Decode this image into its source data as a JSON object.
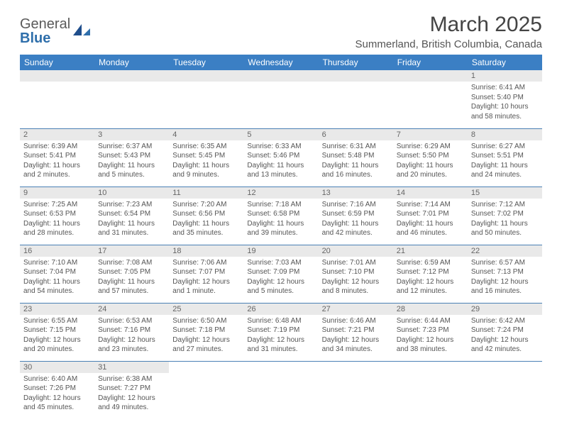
{
  "logo": {
    "general": "General",
    "blue": "Blue"
  },
  "header": {
    "title": "March 2025",
    "subtitle": "Summerland, British Columbia, Canada"
  },
  "style": {
    "header_bg": "#3b7fc4",
    "header_fg": "#ffffff",
    "daynum_bg": "#e9e9e9",
    "daynum_fg": "#666666",
    "border_color": "#4a80b5",
    "body_fg": "#555555",
    "title_fontsize": 30,
    "subtitle_fontsize": 15,
    "weekday_fontsize": 12,
    "daynum_fontsize": 11,
    "cell_fontsize": 10
  },
  "weekdays": [
    "Sunday",
    "Monday",
    "Tuesday",
    "Wednesday",
    "Thursday",
    "Friday",
    "Saturday"
  ],
  "cells": [
    [
      {
        "blank": true
      },
      {
        "blank": true
      },
      {
        "blank": true
      },
      {
        "blank": true
      },
      {
        "blank": true
      },
      {
        "blank": true
      },
      {
        "day": "1",
        "sunrise": "Sunrise: 6:41 AM",
        "sunset": "Sunset: 5:40 PM",
        "daylight": "Daylight: 10 hours and 58 minutes."
      }
    ],
    [
      {
        "day": "2",
        "sunrise": "Sunrise: 6:39 AM",
        "sunset": "Sunset: 5:41 PM",
        "daylight": "Daylight: 11 hours and 2 minutes."
      },
      {
        "day": "3",
        "sunrise": "Sunrise: 6:37 AM",
        "sunset": "Sunset: 5:43 PM",
        "daylight": "Daylight: 11 hours and 5 minutes."
      },
      {
        "day": "4",
        "sunrise": "Sunrise: 6:35 AM",
        "sunset": "Sunset: 5:45 PM",
        "daylight": "Daylight: 11 hours and 9 minutes."
      },
      {
        "day": "5",
        "sunrise": "Sunrise: 6:33 AM",
        "sunset": "Sunset: 5:46 PM",
        "daylight": "Daylight: 11 hours and 13 minutes."
      },
      {
        "day": "6",
        "sunrise": "Sunrise: 6:31 AM",
        "sunset": "Sunset: 5:48 PM",
        "daylight": "Daylight: 11 hours and 16 minutes."
      },
      {
        "day": "7",
        "sunrise": "Sunrise: 6:29 AM",
        "sunset": "Sunset: 5:50 PM",
        "daylight": "Daylight: 11 hours and 20 minutes."
      },
      {
        "day": "8",
        "sunrise": "Sunrise: 6:27 AM",
        "sunset": "Sunset: 5:51 PM",
        "daylight": "Daylight: 11 hours and 24 minutes."
      }
    ],
    [
      {
        "day": "9",
        "sunrise": "Sunrise: 7:25 AM",
        "sunset": "Sunset: 6:53 PM",
        "daylight": "Daylight: 11 hours and 28 minutes."
      },
      {
        "day": "10",
        "sunrise": "Sunrise: 7:23 AM",
        "sunset": "Sunset: 6:54 PM",
        "daylight": "Daylight: 11 hours and 31 minutes."
      },
      {
        "day": "11",
        "sunrise": "Sunrise: 7:20 AM",
        "sunset": "Sunset: 6:56 PM",
        "daylight": "Daylight: 11 hours and 35 minutes."
      },
      {
        "day": "12",
        "sunrise": "Sunrise: 7:18 AM",
        "sunset": "Sunset: 6:58 PM",
        "daylight": "Daylight: 11 hours and 39 minutes."
      },
      {
        "day": "13",
        "sunrise": "Sunrise: 7:16 AM",
        "sunset": "Sunset: 6:59 PM",
        "daylight": "Daylight: 11 hours and 42 minutes."
      },
      {
        "day": "14",
        "sunrise": "Sunrise: 7:14 AM",
        "sunset": "Sunset: 7:01 PM",
        "daylight": "Daylight: 11 hours and 46 minutes."
      },
      {
        "day": "15",
        "sunrise": "Sunrise: 7:12 AM",
        "sunset": "Sunset: 7:02 PM",
        "daylight": "Daylight: 11 hours and 50 minutes."
      }
    ],
    [
      {
        "day": "16",
        "sunrise": "Sunrise: 7:10 AM",
        "sunset": "Sunset: 7:04 PM",
        "daylight": "Daylight: 11 hours and 54 minutes."
      },
      {
        "day": "17",
        "sunrise": "Sunrise: 7:08 AM",
        "sunset": "Sunset: 7:05 PM",
        "daylight": "Daylight: 11 hours and 57 minutes."
      },
      {
        "day": "18",
        "sunrise": "Sunrise: 7:06 AM",
        "sunset": "Sunset: 7:07 PM",
        "daylight": "Daylight: 12 hours and 1 minute."
      },
      {
        "day": "19",
        "sunrise": "Sunrise: 7:03 AM",
        "sunset": "Sunset: 7:09 PM",
        "daylight": "Daylight: 12 hours and 5 minutes."
      },
      {
        "day": "20",
        "sunrise": "Sunrise: 7:01 AM",
        "sunset": "Sunset: 7:10 PM",
        "daylight": "Daylight: 12 hours and 8 minutes."
      },
      {
        "day": "21",
        "sunrise": "Sunrise: 6:59 AM",
        "sunset": "Sunset: 7:12 PM",
        "daylight": "Daylight: 12 hours and 12 minutes."
      },
      {
        "day": "22",
        "sunrise": "Sunrise: 6:57 AM",
        "sunset": "Sunset: 7:13 PM",
        "daylight": "Daylight: 12 hours and 16 minutes."
      }
    ],
    [
      {
        "day": "23",
        "sunrise": "Sunrise: 6:55 AM",
        "sunset": "Sunset: 7:15 PM",
        "daylight": "Daylight: 12 hours and 20 minutes."
      },
      {
        "day": "24",
        "sunrise": "Sunrise: 6:53 AM",
        "sunset": "Sunset: 7:16 PM",
        "daylight": "Daylight: 12 hours and 23 minutes."
      },
      {
        "day": "25",
        "sunrise": "Sunrise: 6:50 AM",
        "sunset": "Sunset: 7:18 PM",
        "daylight": "Daylight: 12 hours and 27 minutes."
      },
      {
        "day": "26",
        "sunrise": "Sunrise: 6:48 AM",
        "sunset": "Sunset: 7:19 PM",
        "daylight": "Daylight: 12 hours and 31 minutes."
      },
      {
        "day": "27",
        "sunrise": "Sunrise: 6:46 AM",
        "sunset": "Sunset: 7:21 PM",
        "daylight": "Daylight: 12 hours and 34 minutes."
      },
      {
        "day": "28",
        "sunrise": "Sunrise: 6:44 AM",
        "sunset": "Sunset: 7:23 PM",
        "daylight": "Daylight: 12 hours and 38 minutes."
      },
      {
        "day": "29",
        "sunrise": "Sunrise: 6:42 AM",
        "sunset": "Sunset: 7:24 PM",
        "daylight": "Daylight: 12 hours and 42 minutes."
      }
    ],
    [
      {
        "day": "30",
        "sunrise": "Sunrise: 6:40 AM",
        "sunset": "Sunset: 7:26 PM",
        "daylight": "Daylight: 12 hours and 45 minutes."
      },
      {
        "day": "31",
        "sunrise": "Sunrise: 6:38 AM",
        "sunset": "Sunset: 7:27 PM",
        "daylight": "Daylight: 12 hours and 49 minutes."
      },
      {
        "blank": true,
        "noborder": true
      },
      {
        "blank": true,
        "noborder": true
      },
      {
        "blank": true,
        "noborder": true
      },
      {
        "blank": true,
        "noborder": true
      },
      {
        "blank": true,
        "noborder": true
      }
    ]
  ]
}
